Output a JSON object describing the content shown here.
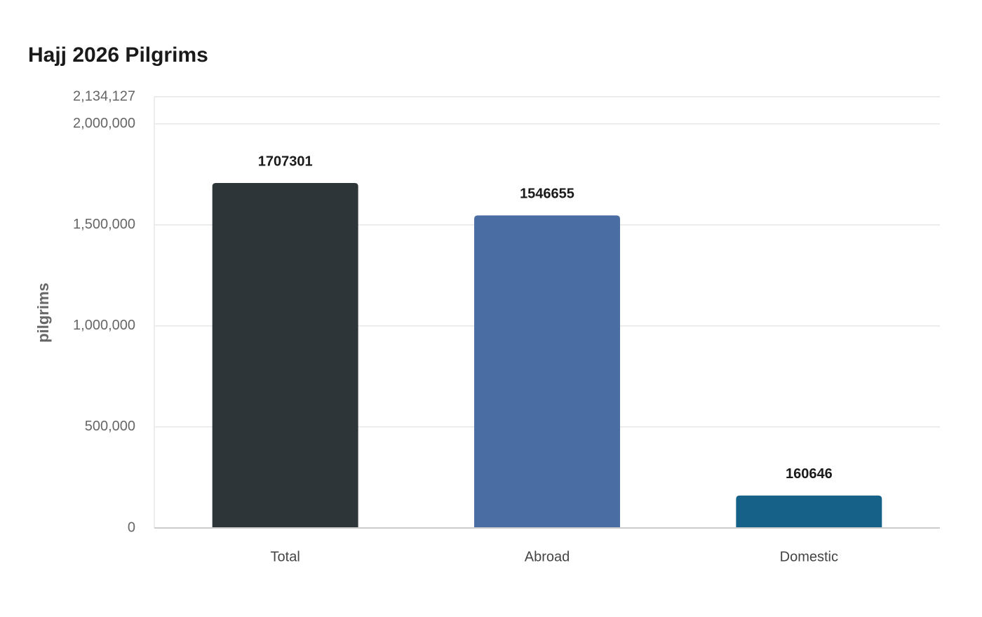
{
  "chart_data": {
    "type": "bar",
    "title": "Hajj 2026 Pilgrims",
    "y_label": "pilgrims",
    "categories": [
      "Total",
      "Abroad",
      "Domestic"
    ],
    "values": [
      1707301,
      1546655,
      160646
    ],
    "colors": [
      "#2e3538",
      "#4a6da3",
      "#166187"
    ],
    "ylim": [
      0,
      2134127
    ],
    "yticks": [
      0,
      {
        "value": 500000,
        "label": "500,000"
      },
      {
        "value": 1000000,
        "label": "1,000,000"
      },
      {
        "value": 1500000,
        "label": "1,500,000"
      },
      {
        "value": 2000000,
        "label": "2,000,000"
      },
      {
        "value": 2134127,
        "label": "2,134,127"
      }
    ],
    "grid": true
  }
}
